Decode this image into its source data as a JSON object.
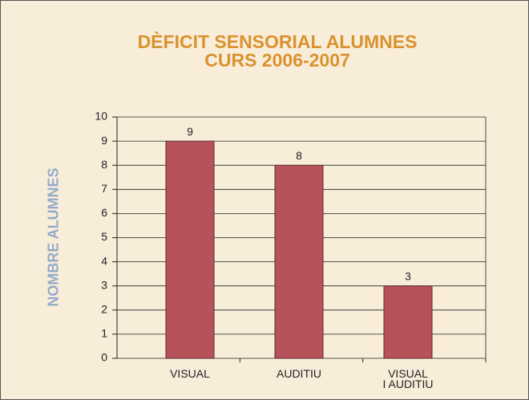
{
  "chart_data": {
    "type": "bar",
    "title": "DÈFICIT SENSORIAL ALUMNES\nCURS 2006-2007",
    "y_label": "NOMBRE ALUMNES",
    "categories": [
      "VISUAL",
      "AUDITIU",
      "VISUAL\nI AUDITIU"
    ],
    "values": [
      9,
      8,
      3
    ],
    "color": "#b5525a",
    "ylim": [
      0,
      10
    ],
    "yticks": [
      0,
      1,
      2,
      3,
      4,
      5,
      6,
      7,
      8,
      9,
      10
    ],
    "grid": true
  }
}
